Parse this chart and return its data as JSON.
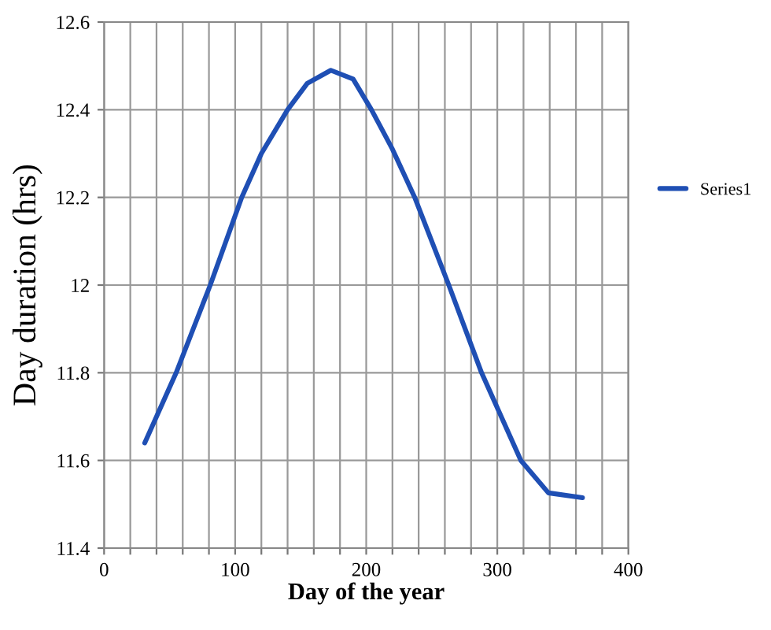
{
  "chart_data": {
    "type": "line",
    "xlabel": "Day of the year",
    "ylabel": "Day duration (hrs)",
    "series": [
      {
        "name": "Series1",
        "color": "#1f4fb4",
        "x": [
          31,
          55,
          81,
          105,
          120,
          140,
          155,
          173,
          190,
          204,
          220,
          237,
          263,
          288,
          318,
          339,
          365
        ],
        "values": [
          11.64,
          11.8,
          12.0,
          12.2,
          12.3,
          12.4,
          12.46,
          12.49,
          12.47,
          12.4,
          12.31,
          12.2,
          12.0,
          11.8,
          11.6,
          11.526,
          11.515
        ]
      }
    ],
    "xlim": [
      0,
      400
    ],
    "ylim": [
      11.4,
      12.6
    ],
    "xticks": [
      0,
      {
        "value": 20,
        "label": null
      },
      {
        "value": 40,
        "label": null
      },
      {
        "value": 60,
        "label": null
      },
      {
        "value": 80,
        "label": null
      },
      100,
      {
        "value": 120,
        "label": null
      },
      {
        "value": 140,
        "label": null
      },
      {
        "value": 160,
        "label": null
      },
      {
        "value": 180,
        "label": null
      },
      200,
      {
        "value": 220,
        "label": null
      },
      {
        "value": 240,
        "label": null
      },
      {
        "value": 260,
        "label": null
      },
      {
        "value": 280,
        "label": null
      },
      300,
      {
        "value": 320,
        "label": null
      },
      {
        "value": 340,
        "label": null
      },
      {
        "value": 360,
        "label": null
      },
      {
        "value": 380,
        "label": null
      },
      400
    ],
    "yticks": [
      11.4,
      11.6,
      11.8,
      12,
      12.2,
      12.4,
      12.6
    ],
    "grid": true,
    "legend": "right",
    "marker": "none",
    "line_style": "solid"
  }
}
